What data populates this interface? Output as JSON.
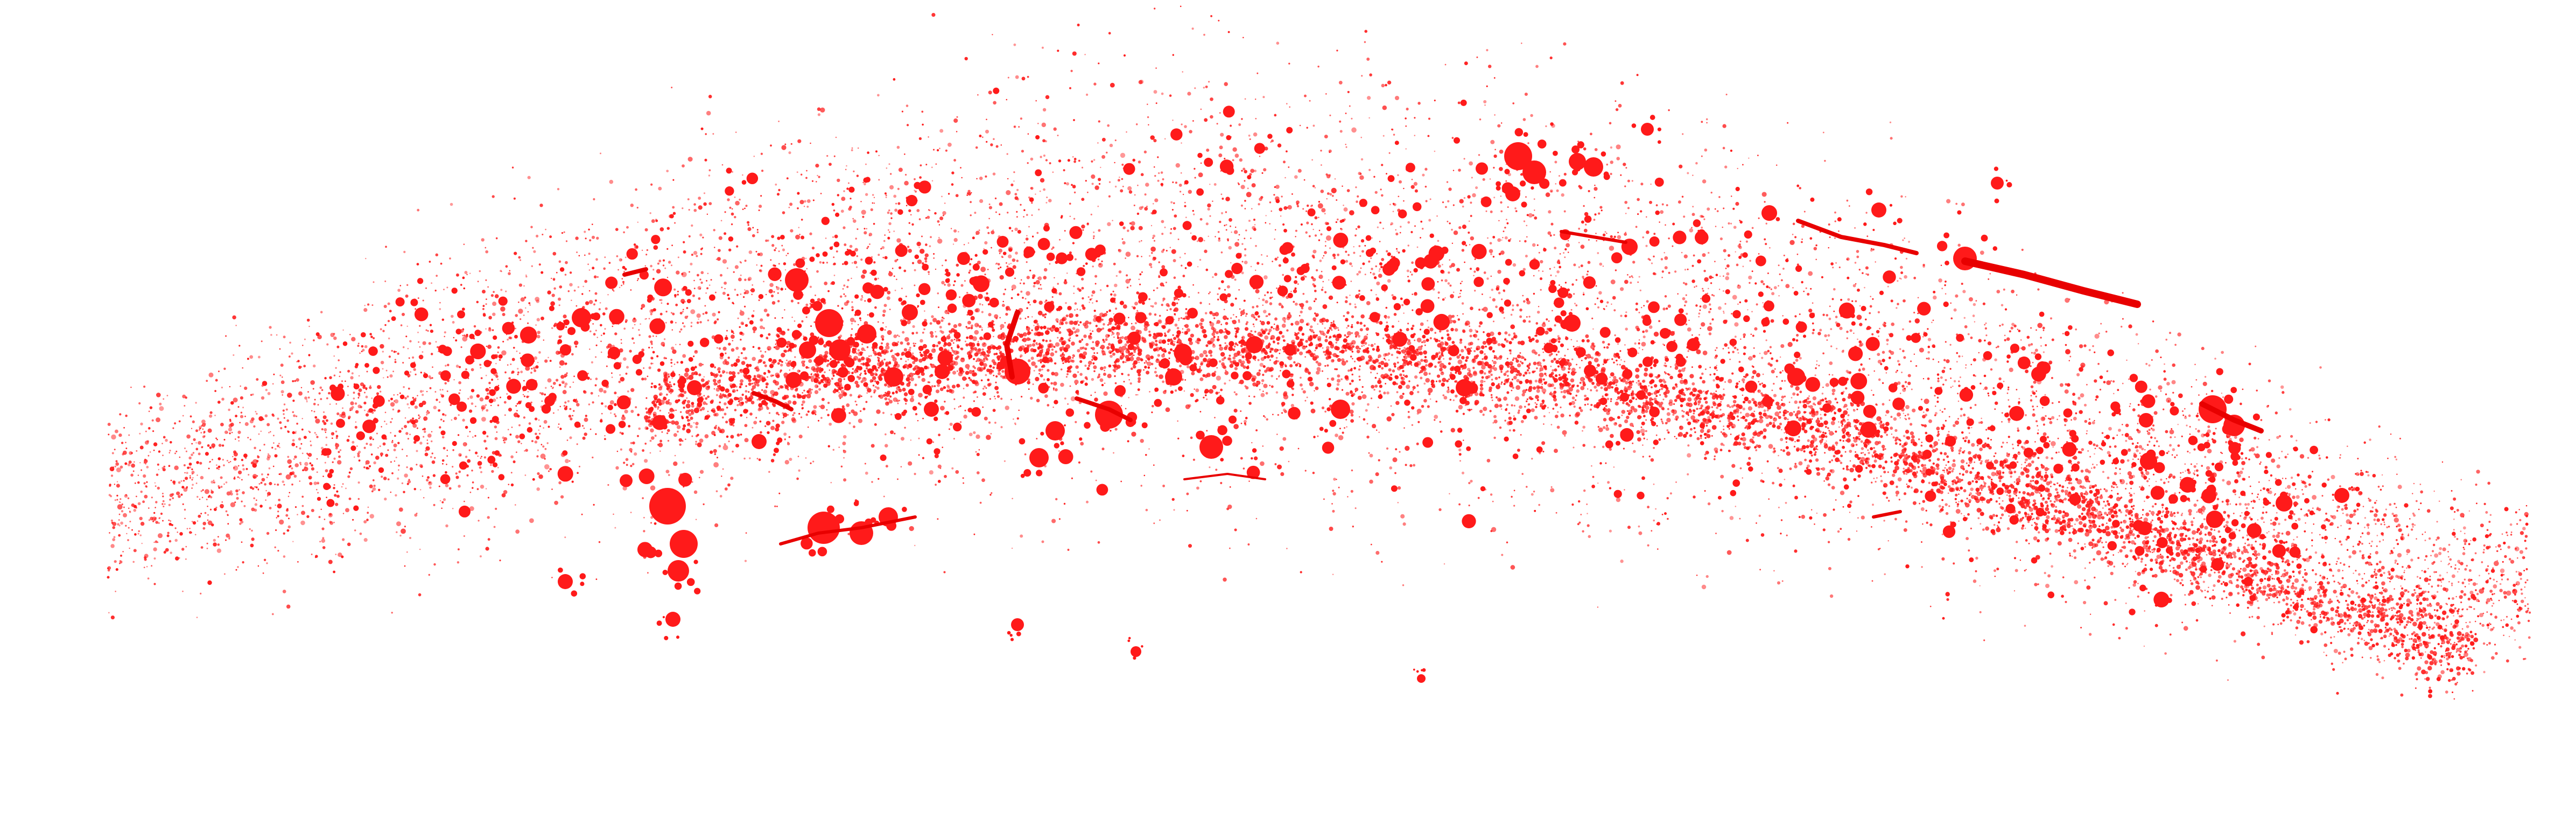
{
  "image": {
    "background_color": "#ffffff",
    "paint_color": "#ff1a1a",
    "paint_color_dark": "#e80000"
  }
}
